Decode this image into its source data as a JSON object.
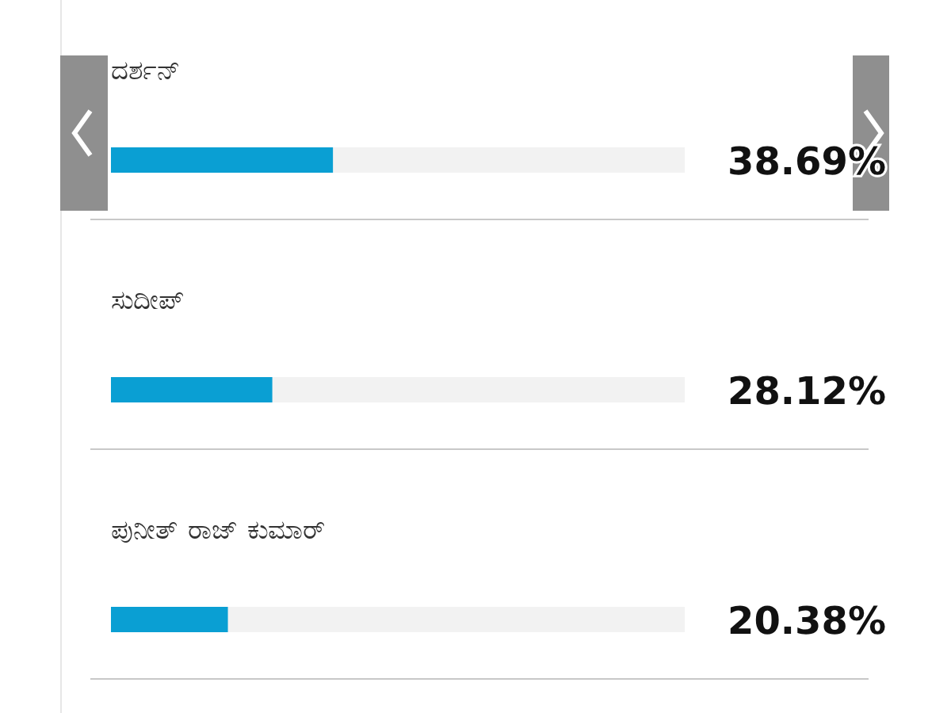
{
  "chart_data": {
    "type": "bar",
    "orientation": "horizontal",
    "categories": [
      "ದರ್ಶನ್",
      "ಸುದೀಪ್",
      "ಪುನೀತ್ ರಾಜ್ ಕುಮಾರ್"
    ],
    "values": [
      38.69,
      28.12,
      20.38
    ],
    "value_labels": [
      "38.69%",
      "28.12%",
      "20.38%"
    ],
    "color": "#0a9fd3",
    "xlim": [
      0,
      100
    ]
  }
}
